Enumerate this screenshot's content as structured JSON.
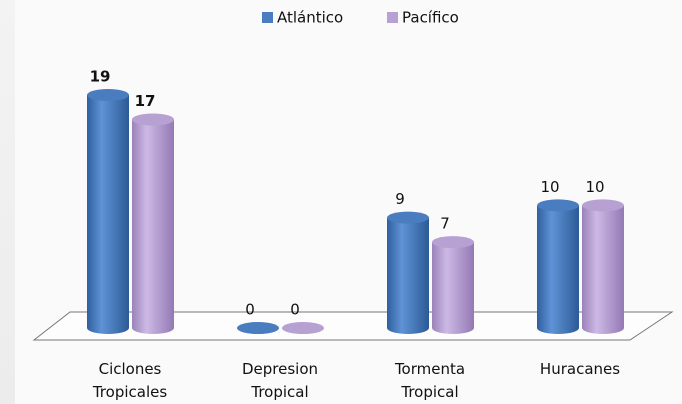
{
  "chart_data": {
    "type": "bar",
    "categories": [
      "Ciclones Tropicales",
      "Depresion Tropical",
      "Tormenta Tropical",
      "Huracanes"
    ],
    "series": [
      {
        "name": "Atlántico",
        "color": "#4a7cc0",
        "values": [
          19,
          0,
          9,
          10
        ]
      },
      {
        "name": "Pacífico",
        "color": "#b7a0d2",
        "values": [
          17,
          0,
          7,
          10
        ]
      }
    ],
    "legend": "top"
  }
}
